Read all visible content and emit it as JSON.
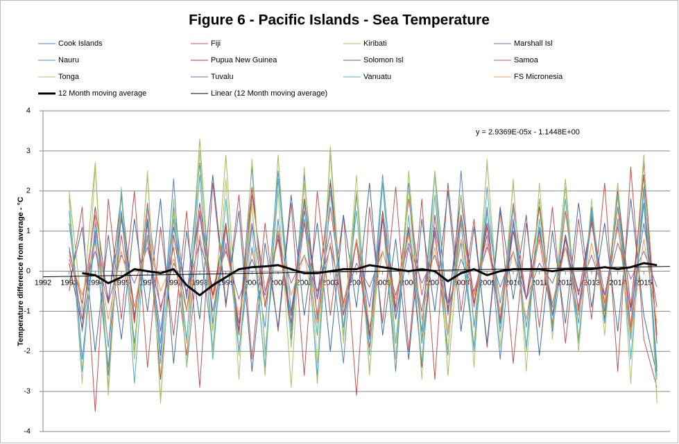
{
  "chart_data": {
    "type": "line",
    "title": "Figure 6 - Pacific Islands - Sea Temperature",
    "y_label": "Temperature difference from average - °C",
    "annotation": "y = 2.9369E-05x - 1.1448E+00",
    "xlim": [
      1992,
      2016
    ],
    "xticks": [
      1992,
      1993,
      1994,
      1995,
      1996,
      1997,
      1998,
      1999,
      2000,
      2001,
      2002,
      2003,
      2004,
      2005,
      2006,
      2007,
      2008,
      2009,
      2010,
      2011,
      2012,
      2013,
      2014,
      2015
    ],
    "ylim": [
      -4,
      4
    ],
    "yticks": [
      -4,
      -3,
      -2,
      -1,
      0,
      1,
      2,
      3,
      4
    ],
    "grid": true,
    "x": [
      1993,
      1993.5,
      1994,
      1994.5,
      1995,
      1995.5,
      1996,
      1996.5,
      1997,
      1997.5,
      1998,
      1998.5,
      1999,
      1999.5,
      2000,
      2000.5,
      2001,
      2001.5,
      2002,
      2002.5,
      2003,
      2003.5,
      2004,
      2004.5,
      2005,
      2005.5,
      2006,
      2006.5,
      2007,
      2007.5,
      2008,
      2008.5,
      2009,
      2009.5,
      2010,
      2010.5,
      2011,
      2011.5,
      2012,
      2012.5,
      2013,
      2013.5,
      2014,
      2014.5,
      2015,
      2015.5
    ],
    "series": [
      {
        "name": "Cook Islands",
        "color": "#4f81bd",
        "width": 1,
        "values": [
          1.8,
          -2.2,
          0.9,
          -2.6,
          1.5,
          -1.8,
          1.2,
          -2.1,
          2.3,
          -2.4,
          0.8,
          -1.9,
          1.1,
          -1.5,
          2.6,
          -2.0,
          1.3,
          -1.7,
          2.4,
          -1.2,
          0.7,
          -2.3,
          1.9,
          -1.6,
          1.4,
          -2.5,
          2.2,
          -1.8,
          1.0,
          -2.1,
          2.5,
          -1.4,
          1.6,
          -2.2,
          1.3,
          -1.9,
          1.8,
          -1.5,
          0.9,
          -1.7,
          1.4,
          -1.3,
          2.0,
          -1.6,
          1.7,
          -2.5
        ]
      },
      {
        "name": "Fiji",
        "color": "#c0504d",
        "width": 1,
        "values": [
          -0.5,
          1.6,
          -3.5,
          1.8,
          -1.2,
          2.0,
          -2.4,
          1.1,
          -1.6,
          1.5,
          -2.9,
          2.2,
          -0.9,
          1.9,
          -2.2,
          1.2,
          -1.5,
          1.7,
          -2.6,
          2.0,
          -1.1,
          1.4,
          -3.1,
          1.6,
          -1.3,
          2.1,
          -2.0,
          1.8,
          -2.7,
          2.2,
          -1.0,
          1.3,
          -1.9,
          1.5,
          -2.3,
          1.2,
          -1.4,
          1.6,
          -1.8,
          1.3,
          -1.2,
          2.2,
          -2.5,
          2.6,
          -1.7,
          -2.9
        ]
      },
      {
        "name": "Kiribati",
        "color": "#9bbb59",
        "width": 1,
        "values": [
          2.0,
          -1.0,
          2.7,
          -2.9,
          1.9,
          -2.0,
          2.4,
          -3.2,
          1.5,
          -1.8,
          3.3,
          -1.5,
          2.9,
          -2.1,
          1.7,
          -2.6,
          2.9,
          -1.9,
          2.2,
          -2.8,
          3.1,
          -1.6,
          2.0,
          -2.5,
          1.4,
          -2.2,
          2.5,
          -1.7,
          2.4,
          -2.6,
          1.3,
          -1.9,
          2.7,
          -1.5,
          2.2,
          -2.0,
          1.8,
          -1.4,
          2.3,
          -1.8,
          1.6,
          -1.2,
          2.2,
          -1.5,
          2.9,
          -3.2
        ]
      },
      {
        "name": "Marshall Isl",
        "color": "#8064a2",
        "width": 1,
        "values": [
          0.3,
          -0.6,
          0.5,
          -0.8,
          0.4,
          -0.3,
          0.6,
          -0.9,
          0.2,
          -0.5,
          0.7,
          -0.4,
          0.5,
          -0.7,
          0.3,
          -0.6,
          0.8,
          -0.3,
          0.4,
          -0.5,
          0.6,
          -0.8,
          0.2,
          -0.4,
          0.5,
          -0.6,
          0.7,
          -0.3,
          0.4,
          -0.9,
          0.3,
          -0.5,
          0.6,
          -0.4,
          0.5,
          -0.7,
          0.2,
          -0.3,
          0.6,
          -0.5,
          0.4,
          -0.6,
          0.7,
          -0.2,
          0.5,
          -0.4
        ]
      },
      {
        "name": "Nauru",
        "color": "#4b8fc6",
        "width": 1,
        "values": [
          1.2,
          -1.5,
          0.8,
          -2.4,
          1.4,
          -1.1,
          0.9,
          -1.8,
          1.6,
          -0.7,
          2.7,
          -1.3,
          1.1,
          -2.0,
          0.6,
          -1.4,
          2.5,
          -1.0,
          1.3,
          -1.6,
          2.3,
          -0.9,
          0.8,
          -1.7,
          2.4,
          -1.2,
          1.0,
          -1.5,
          2.5,
          -1.1,
          0.7,
          -1.9,
          1.5,
          -0.8,
          1.2,
          -1.4,
          1.1,
          -0.9,
          0.9,
          -1.3,
          1.6,
          -1.0,
          1.3,
          -1.7,
          2.1,
          -2.4
        ]
      },
      {
        "name": "Pupua New Guinea",
        "color": "#a0413e",
        "width": 1,
        "values": [
          0.2,
          -1.4,
          1.6,
          -0.8,
          1.9,
          -1.2,
          1.3,
          -2.7,
          0.9,
          -1.0,
          1.7,
          -0.6,
          1.2,
          -1.5,
          2.1,
          -0.9,
          1.0,
          -1.3,
          1.8,
          -0.7,
          2.2,
          -1.1,
          0.8,
          -1.6,
          1.5,
          -0.9,
          1.1,
          -2.4,
          1.4,
          -1.0,
          1.9,
          -0.8,
          1.2,
          -1.3,
          1.0,
          -0.7,
          1.6,
          -1.1,
          0.9,
          -0.6,
          1.3,
          -1.2,
          2.0,
          -0.9,
          2.4,
          -1.8
        ]
      },
      {
        "name": "Solomon Isl",
        "color": "#3d6a9e",
        "width": 1,
        "values": [
          -0.3,
          1.1,
          -2.0,
          0.9,
          -1.7,
          1.3,
          -1.0,
          1.8,
          -2.3,
          1.0,
          -1.2,
          2.4,
          -0.8,
          1.5,
          -2.5,
          0.7,
          -1.4,
          1.9,
          -1.1,
          1.2,
          -2.0,
          1.4,
          -0.9,
          2.2,
          -1.6,
          0.8,
          -2.2,
          1.3,
          -1.0,
          2.0,
          -1.5,
          1.1,
          -1.8,
          1.6,
          -0.7,
          1.4,
          -2.1,
          1.0,
          -1.3,
          1.7,
          -0.9,
          1.2,
          -1.5,
          1.8,
          -1.1,
          -2.6
        ]
      },
      {
        "name": "Samoa",
        "color": "#d9534f",
        "width": 1,
        "values": [
          0.5,
          -0.8,
          1.4,
          -1.9,
          0.9,
          -1.3,
          1.7,
          -1.0,
          0.6,
          -2.1,
          1.5,
          -0.7,
          1.1,
          -1.6,
          1.9,
          -0.5,
          0.8,
          -1.4,
          1.2,
          -1.1,
          1.6,
          -0.8,
          0.7,
          -1.9,
          1.3,
          -1.0,
          1.8,
          -0.6,
          0.9,
          -1.5,
          1.4,
          -0.9,
          1.1,
          -1.2,
          1.7,
          -0.7,
          0.8,
          -1.3,
          1.5,
          -1.0,
          1.2,
          -0.8,
          1.6,
          -1.4,
          2.7,
          -1.6
        ]
      },
      {
        "name": "Tonga",
        "color": "#a9c46c",
        "width": 1,
        "values": [
          1.9,
          -2.8,
          2.6,
          -3.1,
          2.1,
          -2.2,
          2.5,
          -3.3,
          1.8,
          -2.4,
          3.0,
          -2.0,
          2.3,
          -2.7,
          2.8,
          -2.1,
          2.0,
          -2.9,
          2.6,
          -2.3,
          2.9,
          -1.8,
          2.4,
          -2.6,
          2.3,
          -2.2,
          2.1,
          -2.7,
          2.5,
          -2.0,
          1.9,
          -2.4,
          2.8,
          -1.9,
          2.3,
          -2.5,
          2.2,
          -1.7,
          2.1,
          -2.0,
          1.8,
          -1.6,
          2.2,
          -2.8,
          2.9,
          -3.3
        ]
      },
      {
        "name": "Tuvalu",
        "color": "#7a5fa8",
        "width": 1,
        "values": [
          0.6,
          -1.2,
          1.0,
          -0.7,
          1.3,
          -0.9,
          0.8,
          -1.5,
          1.1,
          -0.6,
          1.4,
          -1.0,
          0.7,
          -1.3,
          1.2,
          -0.8,
          0.9,
          -1.1,
          1.5,
          -0.7,
          1.0,
          -1.4,
          0.8,
          -0.9,
          1.3,
          -1.2,
          0.6,
          -1.0,
          1.1,
          -0.8,
          1.4,
          -0.6,
          0.9,
          -1.3,
          1.2,
          -0.7,
          1.0,
          -1.1,
          0.8,
          -0.9,
          1.3,
          -0.6,
          1.1,
          -1.0,
          1.2,
          -0.9
        ]
      },
      {
        "name": "Vanuatu",
        "color": "#4bacc6",
        "width": 1,
        "values": [
          1.5,
          -2.5,
          1.2,
          -1.9,
          2.0,
          -2.8,
          1.6,
          -2.3,
          1.3,
          -1.7,
          2.4,
          -2.2,
          1.8,
          -2.0,
          1.1,
          -2.4,
          2.3,
          -1.5,
          1.7,
          -2.6,
          2.0,
          -1.4,
          1.5,
          -2.1,
          2.2,
          -1.8,
          1.4,
          -2.3,
          1.9,
          -1.6,
          1.2,
          -2.0,
          2.1,
          -1.5,
          1.6,
          -1.9,
          1.3,
          -1.4,
          1.8,
          -1.7,
          1.5,
          -1.3,
          1.9,
          -2.2,
          2.0,
          -2.7
        ]
      },
      {
        "name": "FS Micronesia",
        "color": "#f79646",
        "width": 1,
        "values": [
          0.4,
          -0.6,
          0.7,
          -1.2,
          0.5,
          -0.9,
          0.8,
          -0.5,
          0.3,
          -1.0,
          0.9,
          -0.7,
          0.6,
          -1.1,
          0.5,
          -0.8,
          1.0,
          -0.6,
          0.4,
          -1.3,
          0.7,
          -0.9,
          0.8,
          -1.4,
          0.5,
          -0.7,
          0.9,
          -1.2,
          0.6,
          -1.5,
          0.8,
          -0.6,
          0.7,
          -1.0,
          0.5,
          -1.2,
          0.9,
          -0.8,
          0.6,
          -1.1,
          0.7,
          -0.9,
          1.2,
          -1.6,
          0.8,
          -1.3
        ]
      },
      {
        "name": "12 Month moving average",
        "color": "#000000",
        "width": 3,
        "values": [
          null,
          -0.05,
          -0.1,
          -0.3,
          -0.15,
          0.05,
          0.0,
          -0.05,
          0.05,
          -0.35,
          -0.6,
          -0.35,
          -0.15,
          0.05,
          0.1,
          0.12,
          0.15,
          0.05,
          -0.05,
          -0.05,
          0.0,
          0.05,
          0.05,
          0.15,
          0.1,
          0.05,
          0.0,
          0.05,
          0.0,
          -0.25,
          -0.05,
          0.05,
          -0.1,
          0.0,
          0.05,
          0.05,
          0.05,
          0.0,
          0.05,
          0.05,
          0.05,
          0.1,
          0.05,
          0.1,
          0.2,
          0.15
        ]
      },
      {
        "name": "Linear (12 Month moving average)",
        "color": "#000000",
        "width": 1,
        "x": [
          1992,
          2016
        ],
        "values": [
          -0.14,
          0.12
        ]
      }
    ]
  }
}
